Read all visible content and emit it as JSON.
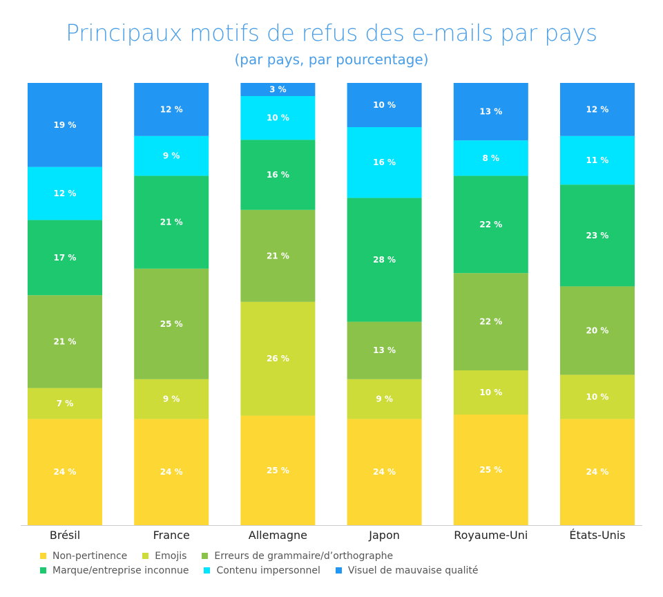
{
  "chart_data": {
    "type": "bar",
    "stacked": true,
    "title": "Principaux motifs de refus des e-mails par pays",
    "subtitle": "(par pays, par pourcentage)",
    "categories": [
      "Brésil",
      "France",
      "Allemagne",
      "Japon",
      "Royaume-Uni",
      "États-Unis"
    ],
    "series": [
      {
        "name": "Non-pertinence",
        "color": "#FDD835",
        "values": [
          24,
          24,
          25,
          24,
          25,
          24
        ]
      },
      {
        "name": "Emojis",
        "color": "#CDDC39",
        "values": [
          7,
          9,
          26,
          9,
          10,
          10
        ]
      },
      {
        "name": "Erreurs de grammaire/d’orthographe",
        "color": "#8BC34A",
        "values": [
          21,
          25,
          21,
          13,
          22,
          20
        ]
      },
      {
        "name": "Marque/entreprise inconnue",
        "color": "#1DC86E",
        "values": [
          17,
          21,
          16,
          28,
          22,
          23
        ]
      },
      {
        "name": "Contenu impersonnel",
        "color": "#00E5FF",
        "values": [
          12,
          9,
          10,
          16,
          8,
          11
        ]
      },
      {
        "name": "Visuel de mauvaise qualité",
        "color": "#2196F3",
        "values": [
          19,
          12,
          3,
          10,
          13,
          12
        ]
      }
    ],
    "value_suffix": " %",
    "legend_position": "bottom",
    "grid": false
  }
}
